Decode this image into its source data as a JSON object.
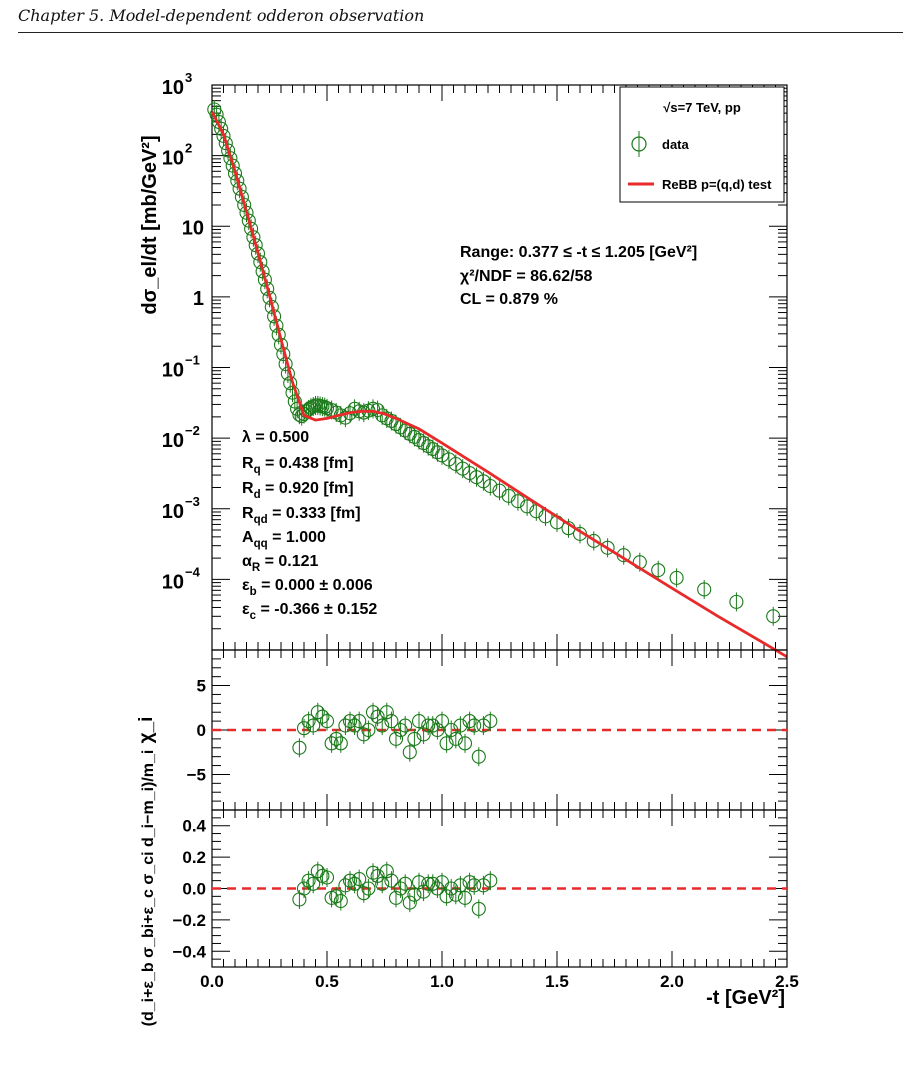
{
  "header": {
    "chapter_title": "Chapter 5. Model-dependent odderon observation"
  },
  "colors": {
    "data": "#1a7a1a",
    "fit": "#e82a2a",
    "axis": "#000000"
  },
  "main_panel": {
    "ylabel": "dσ_el/dt [mb/GeV²]",
    "y_scale": "log",
    "ylim": [
      1e-05,
      1000
    ],
    "y_ticks": [
      {
        "v": 1000,
        "b": "10",
        "s": "3"
      },
      {
        "v": 100,
        "b": "10",
        "s": "2"
      },
      {
        "v": 10,
        "b": "10",
        "s": ""
      },
      {
        "v": 1,
        "b": "1",
        "s": ""
      },
      {
        "v": 0.1,
        "b": "10",
        "s": "−1"
      },
      {
        "v": 0.01,
        "b": "10",
        "s": "−2"
      },
      {
        "v": 0.001,
        "b": "10",
        "s": "−3"
      },
      {
        "v": 0.0001,
        "b": "10",
        "s": "−4"
      }
    ],
    "legend": {
      "title": "√s=7 TeV, pp",
      "entries": [
        {
          "label": "data",
          "kind": "marker"
        },
        {
          "label": "ReBB p=(q,d) test",
          "kind": "line"
        }
      ]
    },
    "fit_stats": [
      "Range: 0.377 ≤ -t ≤ 1.205 [GeV²]",
      "χ²/NDF = 86.62/58",
      "CL = 0.879 %"
    ],
    "params": [
      "λ = 0.500",
      "R_q = 0.438 [fm]",
      "R_d = 0.920 [fm]",
      "R_qd = 0.333 [fm]",
      "A_qq = 1.000",
      "α_R = 0.121",
      "ε_b = 0.000 ± 0.006",
      "ε_c = -0.366 ± 0.152"
    ]
  },
  "chi_panel": {
    "ylabel": "χ_i",
    "ylim": [
      -9,
      9
    ],
    "y_ticks": [
      {
        "v": 5,
        "label": "5"
      },
      {
        "v": 0,
        "label": "0"
      },
      {
        "v": -5,
        "label": "−5"
      }
    ]
  },
  "rel_panel": {
    "ylabel": "(d_i+ε_b σ_bi+ε_c σ_ci d_i−m_i)/m_i",
    "ylim": [
      -0.5,
      0.5
    ],
    "y_ticks": [
      {
        "v": 0.4,
        "label": "0.4"
      },
      {
        "v": 0.2,
        "label": "0.2"
      },
      {
        "v": 0.0,
        "label": "0.0"
      },
      {
        "v": -0.2,
        "label": "−0.2"
      },
      {
        "v": -0.4,
        "label": "−0.4"
      }
    ]
  },
  "x_axis": {
    "xlabel": "-t [GeV²]",
    "xlim": [
      0,
      2.5
    ],
    "ticks": [
      {
        "v": 0.0,
        "label": "0.0"
      },
      {
        "v": 0.5,
        "label": "0.5"
      },
      {
        "v": 1.0,
        "label": "1.0"
      },
      {
        "v": 1.5,
        "label": "1.5"
      },
      {
        "v": 2.0,
        "label": "2.0"
      },
      {
        "v": 2.5,
        "label": "2.5"
      }
    ]
  },
  "chart_data": {
    "type": "scatter",
    "x_scale": "linear",
    "y_scale": "log",
    "xlim": [
      0,
      2.5
    ],
    "ylim": [
      1e-05,
      1000
    ],
    "data": {
      "x": [
        0.01,
        0.02,
        0.03,
        0.04,
        0.05,
        0.06,
        0.07,
        0.08,
        0.09,
        0.1,
        0.11,
        0.12,
        0.13,
        0.14,
        0.15,
        0.16,
        0.17,
        0.18,
        0.19,
        0.2,
        0.21,
        0.22,
        0.23,
        0.24,
        0.25,
        0.26,
        0.27,
        0.28,
        0.29,
        0.3,
        0.31,
        0.32,
        0.33,
        0.34,
        0.35,
        0.36,
        0.37,
        0.38,
        0.39,
        0.4,
        0.41,
        0.42,
        0.43,
        0.44,
        0.45,
        0.46,
        0.47,
        0.48,
        0.49,
        0.5,
        0.52,
        0.54,
        0.56,
        0.58,
        0.6,
        0.62,
        0.64,
        0.66,
        0.68,
        0.7,
        0.72,
        0.74,
        0.76,
        0.78,
        0.8,
        0.82,
        0.84,
        0.86,
        0.88,
        0.9,
        0.92,
        0.94,
        0.96,
        0.98,
        1.0,
        1.03,
        1.06,
        1.09,
        1.12,
        1.15,
        1.18,
        1.21,
        1.25,
        1.29,
        1.33,
        1.37,
        1.41,
        1.45,
        1.5,
        1.55,
        1.6,
        1.66,
        1.72,
        1.79,
        1.86,
        1.94,
        2.02,
        2.14,
        2.28,
        2.44
      ],
      "y": [
        450,
        380,
        300,
        240,
        190,
        150,
        118,
        92,
        72,
        56,
        44,
        34,
        26,
        20,
        15.5,
        12,
        9.2,
        7.0,
        5.4,
        4.1,
        3.1,
        2.3,
        1.75,
        1.3,
        0.97,
        0.72,
        0.53,
        0.39,
        0.29,
        0.21,
        0.155,
        0.112,
        0.082,
        0.06,
        0.044,
        0.033,
        0.026,
        0.0215,
        0.0205,
        0.022,
        0.024,
        0.0255,
        0.027,
        0.028,
        0.029,
        0.029,
        0.0285,
        0.028,
        0.0275,
        0.0265,
        0.025,
        0.023,
        0.021,
        0.0195,
        0.0225,
        0.026,
        0.024,
        0.023,
        0.0245,
        0.026,
        0.025,
        0.021,
        0.019,
        0.0175,
        0.0158,
        0.0142,
        0.0128,
        0.0115,
        0.0104,
        0.0094,
        0.0085,
        0.0077,
        0.007,
        0.0063,
        0.0057,
        0.005,
        0.0043,
        0.0037,
        0.0032,
        0.0028,
        0.00245,
        0.0021,
        0.0018,
        0.00152,
        0.00128,
        0.00108,
        0.00092,
        0.00078,
        0.00064,
        0.00053,
        0.00044,
        0.00035,
        0.00028,
        0.00022,
        0.000175,
        0.000135,
        0.000105,
        7.2e-05,
        4.8e-05,
        3e-05
      ]
    },
    "fit": {
      "x": [
        0.0,
        0.05,
        0.1,
        0.15,
        0.2,
        0.25,
        0.3,
        0.35,
        0.4,
        0.45,
        0.5,
        0.55,
        0.6,
        0.65,
        0.7,
        0.75,
        0.8,
        0.9,
        1.0,
        1.2,
        1.4,
        1.6,
        1.8,
        2.0,
        2.2,
        2.4,
        2.5
      ],
      "y": [
        420,
        200,
        60,
        16,
        4.2,
        1.05,
        0.25,
        0.062,
        0.021,
        0.018,
        0.019,
        0.021,
        0.023,
        0.024,
        0.024,
        0.022,
        0.019,
        0.0135,
        0.0085,
        0.0033,
        0.00125,
        0.00048,
        0.00019,
        7.5e-05,
        3e-05,
        1.25e-05,
        8e-06
      ]
    },
    "residuals": {
      "x": [
        0.38,
        0.4,
        0.42,
        0.44,
        0.46,
        0.48,
        0.5,
        0.52,
        0.54,
        0.56,
        0.58,
        0.6,
        0.62,
        0.64,
        0.66,
        0.68,
        0.7,
        0.72,
        0.74,
        0.76,
        0.78,
        0.8,
        0.82,
        0.84,
        0.86,
        0.88,
        0.9,
        0.92,
        0.94,
        0.96,
        0.98,
        1.0,
        1.02,
        1.04,
        1.06,
        1.08,
        1.1,
        1.12,
        1.14,
        1.16,
        1.18,
        1.21
      ],
      "chi": [
        -2.0,
        0.2,
        1.0,
        0.5,
        2.0,
        1.5,
        1.0,
        -1.5,
        -1.0,
        -1.5,
        0.5,
        1.0,
        0.5,
        1.0,
        -0.5,
        0.0,
        2.0,
        1.5,
        0.5,
        2.0,
        1.0,
        -1.0,
        0.0,
        0.5,
        -2.5,
        -1.0,
        1.0,
        -0.5,
        0.5,
        0.5,
        0.0,
        1.0,
        -1.5,
        0.0,
        -1.0,
        0.5,
        -1.5,
        1.0,
        0.5,
        -3.0,
        0.5,
        1.0
      ],
      "rel": [
        -0.07,
        0.0,
        0.05,
        0.03,
        0.11,
        0.08,
        0.07,
        -0.06,
        -0.05,
        -0.08,
        0.02,
        0.05,
        0.03,
        0.06,
        -0.03,
        0.0,
        0.1,
        0.08,
        0.03,
        0.11,
        0.05,
        -0.06,
        0.0,
        0.03,
        -0.09,
        -0.04,
        0.04,
        -0.02,
        0.03,
        0.03,
        0.0,
        0.04,
        -0.05,
        0.0,
        -0.04,
        0.02,
        -0.06,
        0.04,
        0.02,
        -0.13,
        0.02,
        0.05
      ]
    }
  }
}
